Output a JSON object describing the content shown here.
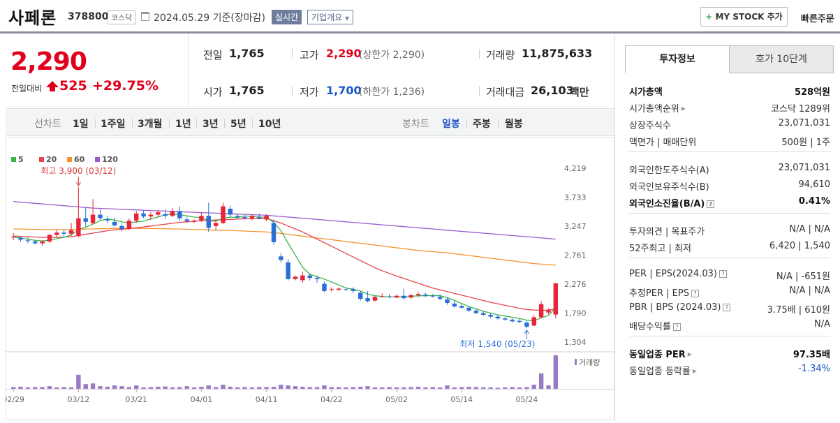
{
  "header": {
    "stock_name": "사페론",
    "stock_code": "378800",
    "market": "코스닥",
    "date_text": "2024.05.29 기준(장마감)",
    "realtime": "실시간",
    "company_overview": "기업개요",
    "my_stock": "MY STOCK 추가",
    "quick_order": "빠른주문"
  },
  "quote": {
    "price": "2,290",
    "change_label": "전일대비",
    "change": "525",
    "change_pct": "+29.75%",
    "prev_label": "전일",
    "prev": "1,765",
    "open_label": "시가",
    "open": "1,765",
    "high_label": "고가",
    "high": "2,290",
    "upper_limit": "(상한가 2,290)",
    "low_label": "저가",
    "low": "1,700",
    "lower_limit": "(하한가 1,236)",
    "volume_label": "거래량",
    "volume": "11,875,633",
    "amount_label": "거래대금",
    "amount": "26,103",
    "amount_unit": "백만"
  },
  "period_bar": {
    "line_label": "선차트",
    "periods": [
      "1일",
      "1주일",
      "3개월",
      "1년",
      "3년",
      "5년",
      "10년"
    ],
    "candle_label": "봉차트",
    "candles": [
      "일봉",
      "주봉",
      "월봉"
    ],
    "selected_candle": "일봉"
  },
  "chart_data": {
    "type": "candlestick",
    "legend": [
      "5",
      "20",
      "60",
      "120"
    ],
    "legend_colors": [
      "#3cb34a",
      "#e8434d",
      "#f5922f",
      "#9b59d0"
    ],
    "y_ticks": [
      "4,219",
      "3,733",
      "3,247",
      "2,761",
      "2,276",
      "1,790",
      "1,304"
    ],
    "x_ticks": [
      "02/29",
      "03/12",
      "03/21",
      "04/01",
      "04/11",
      "04/22",
      "05/02",
      "05/14",
      "05/24"
    ],
    "ylim": [
      1304,
      4219
    ],
    "max_annotation": "최고 3,900 (03/12)",
    "min_annotation": "최저 1,540 (05/23)",
    "volume_label": "거래량",
    "candles": [
      [
        3060,
        3130,
        3010,
        3070
      ],
      [
        3050,
        3080,
        2990,
        3020
      ],
      [
        3010,
        3060,
        2960,
        3000
      ],
      [
        2990,
        3010,
        2940,
        2960
      ],
      [
        2960,
        3010,
        2920,
        2990
      ],
      [
        2990,
        3120,
        2960,
        3100
      ],
      [
        3100,
        3190,
        3060,
        3140
      ],
      [
        3140,
        3190,
        3080,
        3120
      ],
      [
        3120,
        3300,
        3080,
        3180
      ],
      [
        3080,
        3900,
        3060,
        3380
      ],
      [
        3380,
        3560,
        3240,
        3320
      ],
      [
        3300,
        3700,
        3280,
        3440
      ],
      [
        3440,
        3530,
        3350,
        3380
      ],
      [
        3360,
        3420,
        3300,
        3340
      ],
      [
        3320,
        3390,
        3240,
        3260
      ],
      [
        3250,
        3300,
        3160,
        3200
      ],
      [
        3200,
        3380,
        3180,
        3340
      ],
      [
        3340,
        3500,
        3300,
        3460
      ],
      [
        3460,
        3510,
        3380,
        3410
      ],
      [
        3410,
        3480,
        3350,
        3440
      ],
      [
        3440,
        3520,
        3400,
        3480
      ],
      [
        3450,
        3530,
        3370,
        3420
      ],
      [
        3420,
        3550,
        3400,
        3500
      ],
      [
        3500,
        3580,
        3340,
        3380
      ],
      [
        3360,
        3400,
        3300,
        3330
      ],
      [
        3320,
        3360,
        3300,
        3340
      ],
      [
        3340,
        3480,
        3320,
        3420
      ],
      [
        3420,
        3640,
        3150,
        3220
      ],
      [
        3250,
        3350,
        3180,
        3300
      ],
      [
        3300,
        3640,
        3280,
        3580
      ],
      [
        3540,
        3590,
        3400,
        3440
      ],
      [
        3420,
        3460,
        3380,
        3400
      ],
      [
        3400,
        3430,
        3370,
        3380
      ],
      [
        3380,
        3440,
        3350,
        3420
      ],
      [
        3400,
        3460,
        3360,
        3380
      ],
      [
        3360,
        3450,
        3330,
        3420
      ],
      [
        3300,
        3360,
        2940,
        2980
      ],
      [
        2740,
        2800,
        2640,
        2680
      ],
      [
        2640,
        2690,
        2340,
        2360
      ],
      [
        2360,
        2420,
        2340,
        2400
      ],
      [
        2340,
        2480,
        2300,
        2420
      ],
      [
        2420,
        2460,
        2340,
        2380
      ],
      [
        2380,
        2420,
        2300,
        2360
      ],
      [
        2280,
        2320,
        2140,
        2160
      ],
      [
        2180,
        2220,
        2150,
        2190
      ],
      [
        2180,
        2220,
        2160,
        2200
      ],
      [
        2190,
        2220,
        2160,
        2180
      ],
      [
        2190,
        2220,
        2130,
        2160
      ],
      [
        2130,
        2160,
        2000,
        2030
      ],
      [
        2040,
        2160,
        1970,
        1990
      ],
      [
        2000,
        2080,
        1980,
        2060
      ],
      [
        2060,
        2120,
        2050,
        2070
      ],
      [
        2070,
        2110,
        2040,
        2060
      ],
      [
        2050,
        2100,
        2040,
        2080
      ],
      [
        2080,
        2200,
        2010,
        2040
      ],
      [
        2050,
        2100,
        2030,
        2090
      ],
      [
        2090,
        2140,
        2060,
        2110
      ],
      [
        2100,
        2130,
        2060,
        2080
      ],
      [
        2080,
        2110,
        2050,
        2070
      ],
      [
        2060,
        2100,
        2000,
        2030
      ],
      [
        2020,
        2050,
        1930,
        1960
      ],
      [
        1950,
        1990,
        1880,
        1900
      ],
      [
        1910,
        1940,
        1860,
        1880
      ],
      [
        1880,
        1910,
        1810,
        1830
      ],
      [
        1830,
        1860,
        1770,
        1790
      ],
      [
        1790,
        1820,
        1750,
        1760
      ],
      [
        1760,
        1790,
        1710,
        1730
      ],
      [
        1730,
        1750,
        1680,
        1700
      ],
      [
        1700,
        1720,
        1660,
        1680
      ],
      [
        1680,
        1700,
        1630,
        1650
      ],
      [
        1660,
        1690,
        1620,
        1640
      ],
      [
        1630,
        1660,
        1540,
        1560
      ],
      [
        1580,
        1750,
        1570,
        1720
      ],
      [
        1720,
        1990,
        1700,
        1940
      ],
      [
        1800,
        1870,
        1770,
        1840
      ],
      [
        1765,
        2290,
        1700,
        2290
      ]
    ],
    "volumes": [
      0.05,
      0.06,
      0.04,
      0.05,
      0.05,
      0.08,
      0.04,
      0.05,
      0.04,
      0.42,
      0.14,
      0.16,
      0.08,
      0.06,
      0.1,
      0.08,
      0.05,
      0.1,
      0.04,
      0.05,
      0.06,
      0.07,
      0.04,
      0.05,
      0.08,
      0.04,
      0.06,
      0.1,
      0.05,
      0.12,
      0.06,
      0.04,
      0.05,
      0.04,
      0.05,
      0.05,
      0.06,
      0.12,
      0.1,
      0.08,
      0.06,
      0.05,
      0.05,
      0.1,
      0.05,
      0.05,
      0.04,
      0.05,
      0.06,
      0.08,
      0.04,
      0.04,
      0.05,
      0.04,
      0.04,
      0.05,
      0.06,
      0.04,
      0.05,
      0.04,
      0.1,
      0.04,
      0.05,
      0.06,
      0.05,
      0.04,
      0.04,
      0.03,
      0.04,
      0.05,
      0.04,
      0.05,
      0.12,
      0.46,
      0.1,
      1.0
    ],
    "ma5": [
      3065,
      3050,
      3030,
      3010,
      3000,
      3010,
      3040,
      3060,
      3100,
      3190,
      3230,
      3280,
      3340,
      3370,
      3350,
      3320,
      3300,
      3320,
      3330,
      3370,
      3400,
      3440,
      3450,
      3440,
      3420,
      3400,
      3390,
      3340,
      3330,
      3380,
      3400,
      3390,
      3420,
      3410,
      3400,
      3400,
      3310,
      3170,
      2960,
      2760,
      2560,
      2440,
      2400,
      2360,
      2310,
      2260,
      2210,
      2190,
      2160,
      2110,
      2080,
      2070,
      2060,
      2060,
      2060,
      2070,
      2080,
      2080,
      2085,
      2080,
      2050,
      2000,
      1950,
      1900,
      1860,
      1820,
      1790,
      1760,
      1740,
      1720,
      1700,
      1670,
      1660,
      1710,
      1750,
      1880
    ],
    "ma20": [
      3080,
      3075,
      3070,
      3065,
      3060,
      3060,
      3060,
      3065,
      3070,
      3090,
      3110,
      3130,
      3150,
      3170,
      3185,
      3195,
      3205,
      3220,
      3235,
      3250,
      3265,
      3280,
      3295,
      3310,
      3320,
      3330,
      3340,
      3345,
      3350,
      3355,
      3360,
      3365,
      3370,
      3372,
      3374,
      3376,
      3340,
      3300,
      3250,
      3200,
      3150,
      3090,
      3030,
      2970,
      2910,
      2850,
      2790,
      2730,
      2670,
      2610,
      2550,
      2500,
      2455,
      2410,
      2370,
      2330,
      2290,
      2250,
      2210,
      2180,
      2150,
      2120,
      2090,
      2060,
      2030,
      2000,
      1970,
      1945,
      1920,
      1895,
      1870,
      1850,
      1840,
      1835,
      1840,
      1860
    ],
    "ma60": [
      3200,
      3200,
      3195,
      3195,
      3190,
      3190,
      3190,
      3190,
      3190,
      3195,
      3200,
      3200,
      3205,
      3205,
      3210,
      3210,
      3210,
      3210,
      3210,
      3210,
      3205,
      3205,
      3200,
      3200,
      3195,
      3190,
      3190,
      3185,
      3180,
      3180,
      3175,
      3170,
      3165,
      3160,
      3155,
      3150,
      3140,
      3125,
      3110,
      3095,
      3080,
      3065,
      3050,
      3035,
      3020,
      3005,
      2990,
      2975,
      2960,
      2945,
      2930,
      2915,
      2900,
      2885,
      2870,
      2855,
      2840,
      2830,
      2820,
      2810,
      2800,
      2785,
      2770,
      2755,
      2740,
      2725,
      2710,
      2695,
      2680,
      2665,
      2650,
      2635,
      2620,
      2610,
      2600,
      2595
    ],
    "ma120": [
      3660,
      3650,
      3640,
      3630,
      3620,
      3610,
      3600,
      3590,
      3580,
      3570,
      3560,
      3550,
      3545,
      3540,
      3535,
      3530,
      3525,
      3520,
      3515,
      3510,
      3505,
      3500,
      3495,
      3490,
      3485,
      3480,
      3475,
      3470,
      3465,
      3460,
      3455,
      3450,
      3445,
      3440,
      3435,
      3430,
      3420,
      3410,
      3400,
      3390,
      3380,
      3370,
      3360,
      3350,
      3340,
      3330,
      3320,
      3310,
      3300,
      3290,
      3280,
      3270,
      3260,
      3250,
      3240,
      3230,
      3220,
      3210,
      3200,
      3190,
      3180,
      3170,
      3160,
      3150,
      3140,
      3130,
      3120,
      3110,
      3100,
      3090,
      3080,
      3070,
      3060,
      3050,
      3040,
      3030
    ]
  },
  "panel": {
    "tab_invest": "투자정보",
    "tab_hoga": "호가 10단계",
    "rows1": [
      {
        "k": "시가총액",
        "v": "528억원"
      },
      {
        "k": "시가총액순위",
        "v": "코스닥 1289위"
      },
      {
        "k": "상장주식수",
        "v": "23,071,031"
      },
      {
        "k": "액면가 | 매매단위",
        "v": "500원 | 1주"
      }
    ],
    "rows2": [
      {
        "k": "외국인한도주식수(A)",
        "v": "23,071,031"
      },
      {
        "k": "외국인보유주식수(B)",
        "v": "94,610"
      },
      {
        "k": "외국인소진율(B/A)",
        "v": "0.41%"
      }
    ],
    "rows3": [
      {
        "k": "투자의견 | 목표주가",
        "v": "N/A | N/A"
      },
      {
        "k": "52주최고 | 최저",
        "v": "6,420 | 1,540"
      }
    ],
    "rows4": [
      {
        "k": "PER | EPS(2024.03)",
        "v": "N/A | -651원"
      },
      {
        "k": "추정PER | EPS",
        "v": "N/A | N/A"
      },
      {
        "k": "PBR | BPS (2024.03)",
        "v": "3.75배 | 610원"
      },
      {
        "k": "배당수익률",
        "v": "N/A"
      }
    ],
    "rows5": [
      {
        "k": "동일업종 PER",
        "v": "97.35배"
      },
      {
        "k": "동일업종 등락률",
        "v": "-1.34%"
      }
    ]
  }
}
